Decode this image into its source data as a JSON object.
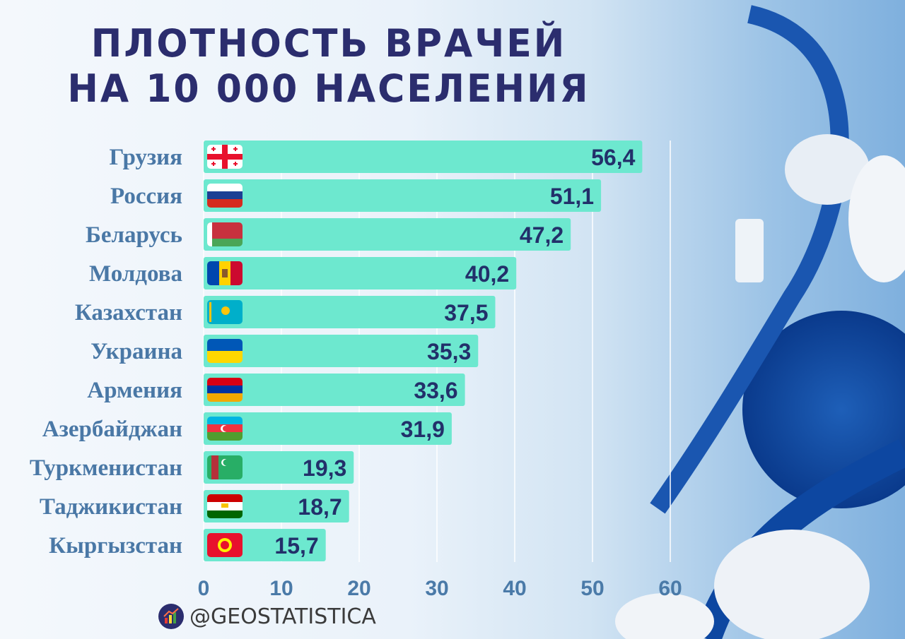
{
  "colors": {
    "bar": "#6de8cf",
    "title": "#2b2d6e",
    "label": "#4a78a6",
    "value": "#22306a",
    "grid": "#ffffff"
  },
  "chart_data": {
    "type": "bar",
    "orientation": "horizontal",
    "title_lines": [
      "ПЛОТНОСТЬ ВРАЧЕЙ",
      "НА 10 000 НАСЕЛЕНИЯ"
    ],
    "categories": [
      "Грузия",
      "Россия",
      "Беларусь",
      "Молдова",
      "Казахстан",
      "Украина",
      "Армения",
      "Азербайджан",
      "Туркменистан",
      "Таджикистан",
      "Кыргызстан"
    ],
    "flags": [
      "georgia-flag",
      "russia-flag",
      "belarus-flag",
      "moldova-flag",
      "kazakhstan-flag",
      "ukraine-flag",
      "armenia-flag",
      "azerbaijan-flag",
      "turkmenistan-flag",
      "tajikistan-flag",
      "kyrgyzstan-flag"
    ],
    "values": [
      56.4,
      51.1,
      47.2,
      40.2,
      37.5,
      35.3,
      33.6,
      31.9,
      19.3,
      18.7,
      15.7
    ],
    "value_labels": [
      "56,4",
      "51,1",
      "47,2",
      "40,2",
      "37,5",
      "35,3",
      "33,6",
      "31,9",
      "19,3",
      "18,7",
      "15,7"
    ],
    "xticks": [
      "0",
      "10",
      "20",
      "30",
      "40",
      "50",
      "60"
    ],
    "xlim": [
      0,
      60
    ],
    "grid": true
  },
  "brand": {
    "handle": "@GEOSTATISTICA"
  }
}
